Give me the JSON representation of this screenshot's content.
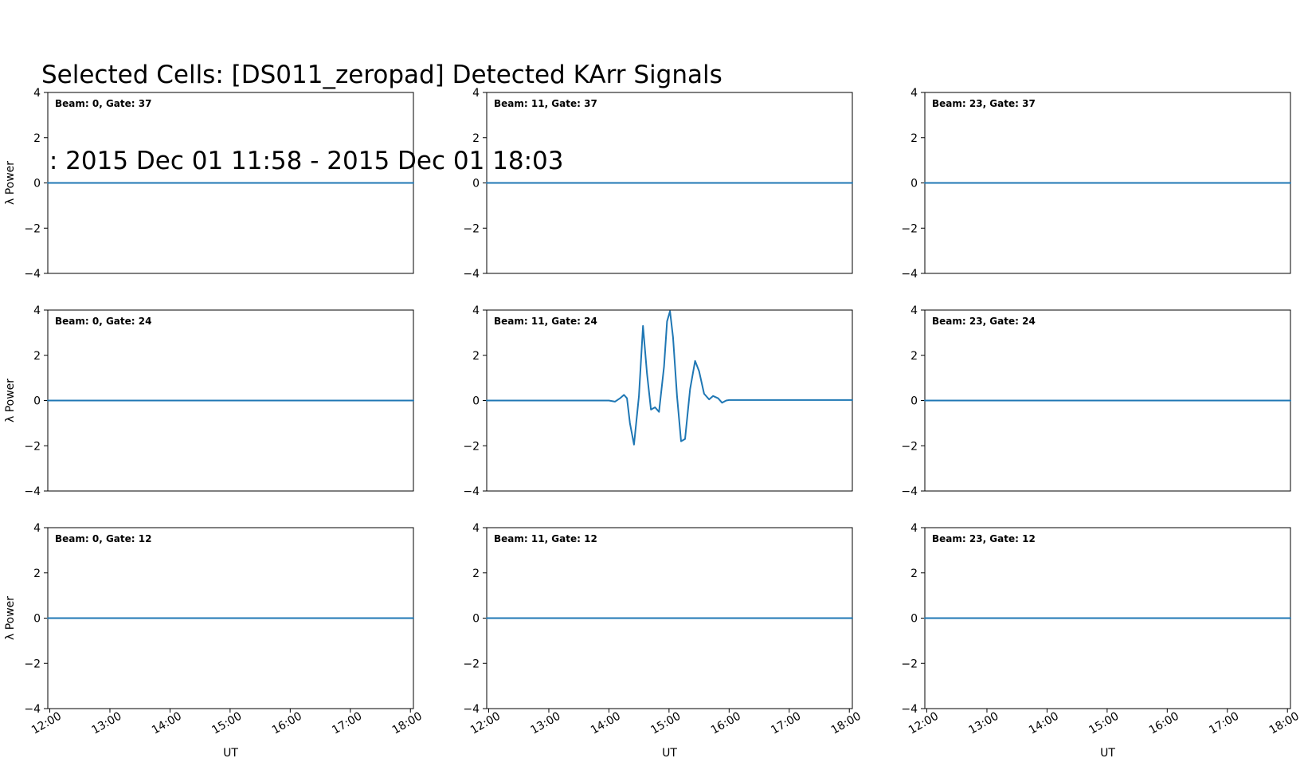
{
  "figure": {
    "title_line1": "Selected Cells: [DS011_zeropad] Detected KArr Signals",
    "title_line2": " : 2015 Dec 01 11:58 - 2015 Dec 01 18:03",
    "line_color": "#1f77b4"
  },
  "chart_data": [
    {
      "type": "line",
      "label": "Beam: 0, Gate: 37",
      "xlim": [
        "11:58",
        "18:03"
      ],
      "ylim": [
        -4,
        4
      ],
      "yticks": [
        "4",
        "2",
        "0",
        "−2",
        "−4"
      ],
      "ylabel": "λ Power",
      "xlabel": "",
      "xticks": [],
      "x": [
        "11:58",
        "18:03"
      ],
      "y": [
        0,
        0
      ]
    },
    {
      "type": "line",
      "label": "Beam: 11, Gate: 37",
      "xlim": [
        "11:58",
        "18:03"
      ],
      "ylim": [
        -4,
        4
      ],
      "yticks": [
        "4",
        "2",
        "0",
        "−2",
        "−4"
      ],
      "ylabel": "",
      "xlabel": "",
      "xticks": [],
      "x": [
        "11:58",
        "18:03"
      ],
      "y": [
        0,
        0
      ]
    },
    {
      "type": "line",
      "label": "Beam: 23, Gate: 37",
      "xlim": [
        "11:58",
        "18:03"
      ],
      "ylim": [
        -4,
        4
      ],
      "yticks": [
        "4",
        "2",
        "0",
        "−2",
        "−4"
      ],
      "ylabel": "",
      "xlabel": "",
      "xticks": [],
      "x": [
        "11:58",
        "18:03"
      ],
      "y": [
        0,
        0
      ]
    },
    {
      "type": "line",
      "label": "Beam: 0, Gate: 24",
      "xlim": [
        "11:58",
        "18:03"
      ],
      "ylim": [
        -4,
        4
      ],
      "yticks": [
        "4",
        "2",
        "0",
        "−2",
        "−4"
      ],
      "ylabel": "λ Power",
      "xlabel": "",
      "xticks": [],
      "x": [
        "11:58",
        "18:03"
      ],
      "y": [
        0,
        0
      ]
    },
    {
      "type": "line",
      "label": "Beam: 11, Gate: 24",
      "xlim": [
        "11:58",
        "18:03"
      ],
      "ylim": [
        -4,
        4
      ],
      "yticks": [
        "4",
        "2",
        "0",
        "−2",
        "−4"
      ],
      "ylabel": "",
      "xlabel": "",
      "xticks": [],
      "x": [
        "11:58",
        "14:00",
        "14:06",
        "14:11",
        "14:15",
        "14:18",
        "14:21",
        "14:25",
        "14:30",
        "14:34",
        "14:38",
        "14:42",
        "14:46",
        "14:50",
        "14:55",
        "14:58",
        "15:01",
        "15:04",
        "15:08",
        "15:12",
        "15:16",
        "15:21",
        "15:26",
        "15:30",
        "15:35",
        "15:40",
        "15:44",
        "15:49",
        "15:53",
        "15:57",
        "16:00",
        "18:03"
      ],
      "y": [
        0,
        0,
        -0.05,
        0.1,
        0.25,
        0.1,
        -1.0,
        -1.95,
        0.2,
        3.3,
        1.2,
        -0.4,
        -0.3,
        -0.5,
        1.5,
        3.5,
        3.95,
        2.8,
        0.2,
        -1.8,
        -1.7,
        0.5,
        1.75,
        1.3,
        0.3,
        0.05,
        0.2,
        0.1,
        -0.1,
        0.0,
        0.02,
        0.02
      ]
    },
    {
      "type": "line",
      "label": "Beam: 23, Gate: 24",
      "xlim": [
        "11:58",
        "18:03"
      ],
      "ylim": [
        -4,
        4
      ],
      "yticks": [
        "4",
        "2",
        "0",
        "−2",
        "−4"
      ],
      "ylabel": "",
      "xlabel": "",
      "xticks": [],
      "x": [
        "11:58",
        "18:03"
      ],
      "y": [
        0,
        0
      ]
    },
    {
      "type": "line",
      "label": "Beam: 0, Gate: 12",
      "xlim": [
        "11:58",
        "18:03"
      ],
      "ylim": [
        -4,
        4
      ],
      "yticks": [
        "4",
        "2",
        "0",
        "−2",
        "−4"
      ],
      "ylabel": "λ Power",
      "xlabel": "UT",
      "xticks": [
        "12:00",
        "13:00",
        "14:00",
        "15:00",
        "16:00",
        "17:00",
        "18:00"
      ],
      "x": [
        "11:58",
        "18:03"
      ],
      "y": [
        0,
        0
      ]
    },
    {
      "type": "line",
      "label": "Beam: 11, Gate: 12",
      "xlim": [
        "11:58",
        "18:03"
      ],
      "ylim": [
        -4,
        4
      ],
      "yticks": [
        "4",
        "2",
        "0",
        "−2",
        "−4"
      ],
      "ylabel": "",
      "xlabel": "UT",
      "xticks": [
        "12:00",
        "13:00",
        "14:00",
        "15:00",
        "16:00",
        "17:00",
        "18:00"
      ],
      "x": [
        "11:58",
        "18:03"
      ],
      "y": [
        0,
        0
      ]
    },
    {
      "type": "line",
      "label": "Beam: 23, Gate: 12",
      "xlim": [
        "11:58",
        "18:03"
      ],
      "ylim": [
        -4,
        4
      ],
      "yticks": [
        "4",
        "2",
        "0",
        "−2",
        "−4"
      ],
      "ylabel": "",
      "xlabel": "UT",
      "xticks": [
        "12:00",
        "13:00",
        "14:00",
        "15:00",
        "16:00",
        "17:00",
        "18:00"
      ],
      "x": [
        "11:58",
        "18:03"
      ],
      "y": [
        0,
        0
      ]
    }
  ]
}
